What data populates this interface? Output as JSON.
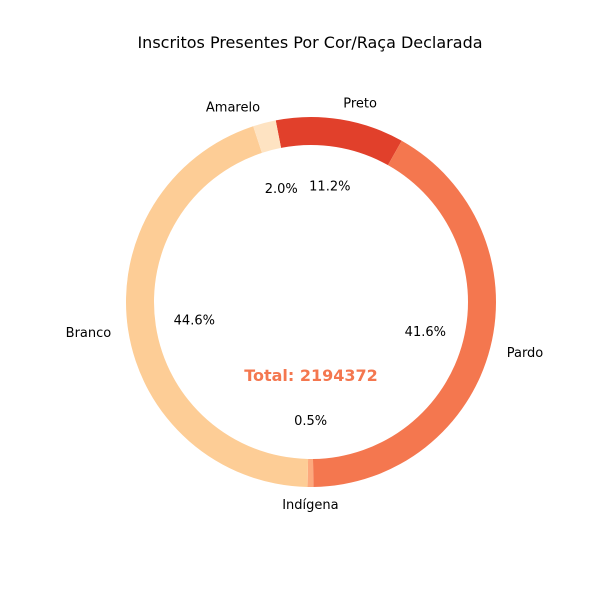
{
  "chart_data": {
    "type": "pie",
    "style": "donut",
    "title": "Inscritos Presentes Por Cor/Raça Declarada",
    "center_label": "Total: 2194372",
    "center_label_color": "#f4774f",
    "slices": [
      {
        "label": "Preto",
        "value": 11.2,
        "pct_label": "11.2%",
        "color": "#e1402b"
      },
      {
        "label": "Pardo",
        "value": 41.6,
        "pct_label": "41.6%",
        "color": "#f4774f"
      },
      {
        "label": "Indígena",
        "value": 0.5,
        "pct_label": "0.5%",
        "color": "#fda97d"
      },
      {
        "label": "Branco",
        "value": 44.6,
        "pct_label": "44.6%",
        "color": "#fdcd96"
      },
      {
        "label": "Amarelo",
        "value": 2.0,
        "pct_label": "2.0%",
        "color": "#fee3c2"
      }
    ]
  }
}
